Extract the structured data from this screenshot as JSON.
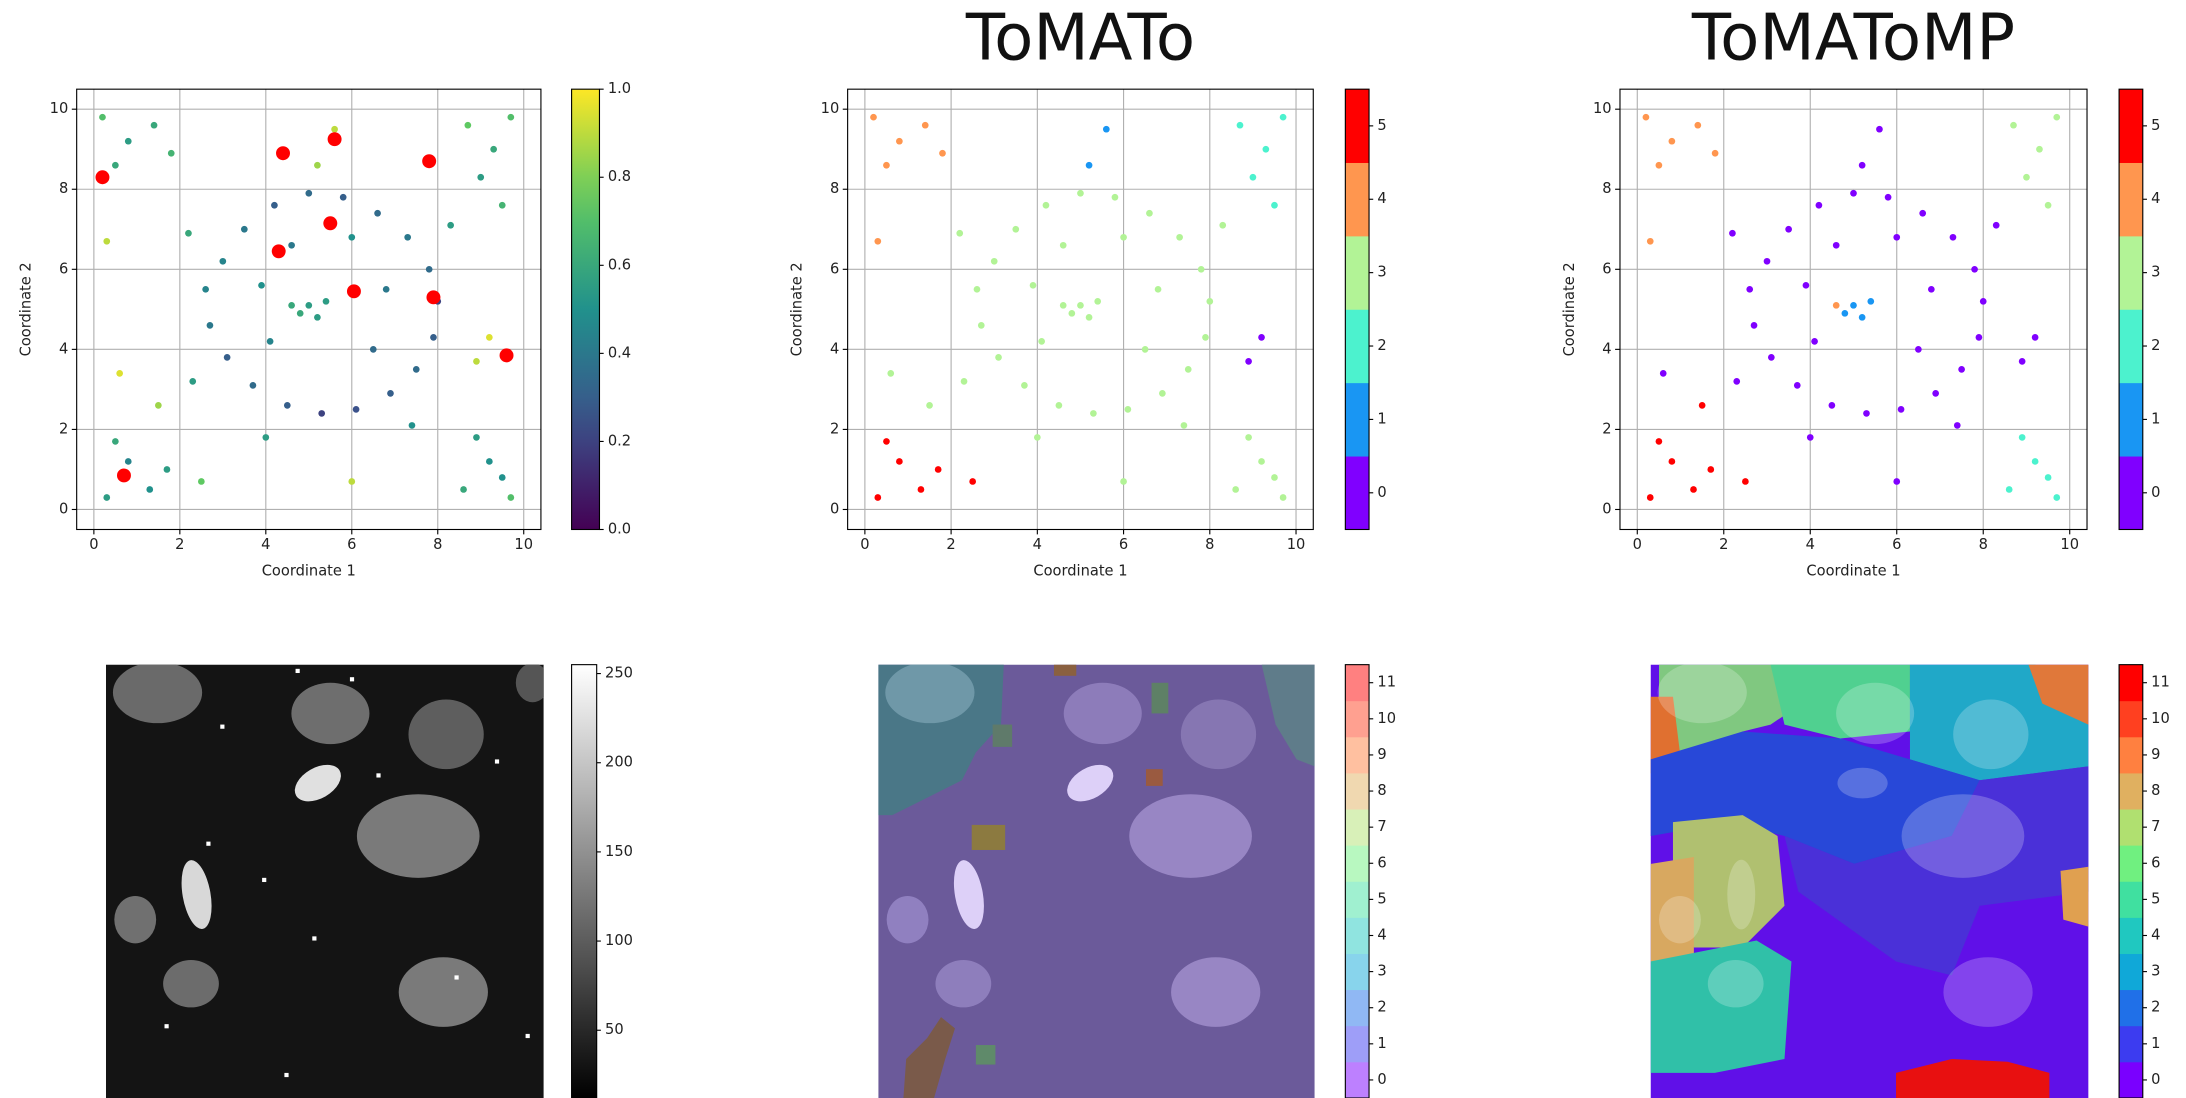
{
  "chart_data": [
    {
      "type": "scatter",
      "xlabel": "Coordinate 1",
      "ylabel": "Coordinate 2",
      "xlim": [
        -0.4,
        10.4
      ],
      "ylim": [
        -0.5,
        10.5
      ],
      "xticks": [
        0,
        2,
        4,
        6,
        8,
        10
      ],
      "yticks": [
        0,
        2,
        4,
        6,
        8,
        10
      ],
      "grid": true,
      "colormap": "viridis",
      "clim": [
        0,
        1
      ],
      "cticks": [
        {
          "value": 0,
          "label": "0.0"
        },
        {
          "value": 0.2,
          "label": "0.2"
        },
        {
          "value": 0.4,
          "label": "0.4"
        },
        {
          "value": 0.6,
          "label": "0.6"
        },
        {
          "value": 0.8,
          "label": "0.8"
        },
        {
          "value": 1,
          "label": "1.0"
        }
      ],
      "series": [
        {
          "x": [
            3.0,
            3.5,
            4.2,
            5.0,
            5.8,
            6.6,
            7.3,
            7.8,
            8.0,
            7.9,
            7.5,
            6.9,
            6.1,
            5.3,
            4.5,
            3.7,
            3.1,
            2.7,
            2.6,
            3.9,
            4.1,
            6.8,
            6.5,
            4.6,
            6.0,
            2.2,
            2.3,
            7.4,
            8.3,
            4.0,
            5.0,
            4.8,
            5.2,
            5.4,
            4.6,
            0.3,
            0.8,
            1.3,
            0.5,
            1.7,
            2.5,
            0.2,
            0.8,
            1.4,
            0.5,
            1.8,
            8.7,
            9.3,
            9.7,
            9.0,
            9.5,
            8.6,
            9.2,
            9.7,
            8.9,
            9.5,
            5.6,
            5.2,
            9.2,
            8.9,
            0.3,
            0.6,
            1.5,
            6.0
          ],
          "y": [
            6.2,
            7.0,
            7.6,
            7.9,
            7.8,
            7.4,
            6.8,
            6.0,
            5.2,
            4.3,
            3.5,
            2.9,
            2.5,
            2.4,
            2.6,
            3.1,
            3.8,
            4.6,
            5.5,
            5.6,
            4.2,
            5.5,
            4.0,
            6.6,
            6.8,
            6.9,
            3.2,
            2.1,
            7.1,
            1.8,
            5.1,
            4.9,
            4.8,
            5.2,
            5.1,
            0.3,
            1.2,
            0.5,
            1.7,
            1.0,
            0.7,
            9.8,
            9.2,
            9.6,
            8.6,
            8.9,
            9.6,
            9.0,
            9.8,
            8.3,
            7.6,
            0.5,
            1.2,
            0.3,
            1.8,
            0.8,
            9.5,
            8.6,
            4.3,
            3.7,
            6.7,
            3.4,
            2.6,
            0.7
          ],
          "values": [
            0.45,
            0.4,
            0.3,
            0.35,
            0.3,
            0.35,
            0.4,
            0.35,
            0.2,
            0.3,
            0.35,
            0.3,
            0.25,
            0.2,
            0.3,
            0.35,
            0.3,
            0.4,
            0.45,
            0.5,
            0.45,
            0.4,
            0.35,
            0.4,
            0.5,
            0.6,
            0.55,
            0.5,
            0.55,
            0.55,
            0.55,
            0.6,
            0.55,
            0.55,
            0.6,
            0.55,
            0.45,
            0.5,
            0.6,
            0.55,
            0.75,
            0.7,
            0.55,
            0.6,
            0.6,
            0.65,
            0.75,
            0.6,
            0.7,
            0.55,
            0.65,
            0.6,
            0.5,
            0.7,
            0.55,
            0.5,
            0.9,
            0.85,
            0.95,
            0.9,
            0.9,
            0.95,
            0.85,
            0.9
          ]
        },
        {
          "x": [
            0.2,
            4.4,
            5.6,
            7.8,
            5.5,
            4.3,
            6.05,
            7.9,
            9.6,
            0.7
          ],
          "y": [
            8.3,
            8.9,
            9.25,
            8.7,
            7.15,
            6.45,
            5.45,
            5.3,
            3.85,
            0.85
          ],
          "color": "#ff0000",
          "size": 5
        }
      ]
    },
    {
      "type": "scatter",
      "title": "ToMATo",
      "xlabel": "Coordinate 1",
      "ylabel": "Coordinate 2",
      "xlim": [
        -0.4,
        10.4
      ],
      "ylim": [
        -0.5,
        10.5
      ],
      "xticks": [
        0,
        2,
        4,
        6,
        8,
        10
      ],
      "yticks": [
        0,
        2,
        4,
        6,
        8,
        10
      ],
      "grid": true,
      "clim": [
        -0.5,
        5.5
      ],
      "cticks": [
        0,
        1,
        2,
        3,
        4,
        5
      ],
      "colors": [
        "#8000ff",
        "#1996f3",
        "#4cf2ce",
        "#b2f396",
        "#ff964f",
        "#ff0000"
      ],
      "series": [
        {
          "x": [
            3.0,
            3.5,
            4.2,
            5.0,
            5.8,
            6.6,
            7.3,
            7.8,
            8.0,
            7.9,
            7.5,
            6.9,
            6.1,
            5.3,
            4.5,
            3.7,
            3.1,
            2.7,
            2.6,
            3.9,
            4.1,
            6.8,
            6.5,
            4.6,
            6.0,
            2.2,
            2.3,
            7.4,
            8.3,
            4.0,
            5.0,
            4.8,
            5.2,
            5.4,
            4.6,
            0.3,
            0.8,
            1.3,
            0.5,
            1.7,
            2.5,
            0.2,
            0.8,
            1.4,
            0.5,
            1.8,
            8.7,
            9.3,
            9.7,
            9.0,
            9.5,
            8.6,
            9.2,
            9.7,
            8.9,
            9.5,
            5.6,
            5.2,
            9.2,
            8.9,
            0.3,
            0.6,
            1.5,
            6.0
          ],
          "y": [
            6.2,
            7.0,
            7.6,
            7.9,
            7.8,
            7.4,
            6.8,
            6.0,
            5.2,
            4.3,
            3.5,
            2.9,
            2.5,
            2.4,
            2.6,
            3.1,
            3.8,
            4.6,
            5.5,
            5.6,
            4.2,
            5.5,
            4.0,
            6.6,
            6.8,
            6.9,
            3.2,
            2.1,
            7.1,
            1.8,
            5.1,
            4.9,
            4.8,
            5.2,
            5.1,
            0.3,
            1.2,
            0.5,
            1.7,
            1.0,
            0.7,
            9.8,
            9.2,
            9.6,
            8.6,
            8.9,
            9.6,
            9.0,
            9.8,
            8.3,
            7.6,
            0.5,
            1.2,
            0.3,
            1.8,
            0.8,
            9.5,
            8.6,
            4.3,
            3.7,
            6.7,
            3.4,
            2.6,
            0.7
          ],
          "values": [
            3,
            3,
            3,
            3,
            3,
            3,
            3,
            3,
            3,
            3,
            3,
            3,
            3,
            3,
            3,
            3,
            3,
            3,
            3,
            3,
            3,
            3,
            3,
            3,
            3,
            3,
            3,
            3,
            3,
            3,
            3,
            3,
            3,
            3,
            3,
            5,
            5,
            5,
            5,
            5,
            5,
            4,
            4,
            4,
            4,
            4,
            2,
            2,
            2,
            2,
            2,
            3,
            3,
            3,
            3,
            3,
            1,
            1,
            0,
            0,
            4,
            3,
            3,
            3
          ]
        }
      ]
    },
    {
      "type": "scatter",
      "title": "ToMAToMP",
      "xlabel": "Coordinate 1",
      "ylabel": "Coordinate 2",
      "xlim": [
        -0.4,
        10.4
      ],
      "ylim": [
        -0.5,
        10.5
      ],
      "xticks": [
        0,
        2,
        4,
        6,
        8,
        10
      ],
      "yticks": [
        0,
        2,
        4,
        6,
        8,
        10
      ],
      "grid": true,
      "clim": [
        -0.5,
        5.5
      ],
      "cticks": [
        0,
        1,
        2,
        3,
        4,
        5
      ],
      "colors": [
        "#8000ff",
        "#1996f3",
        "#4cf2ce",
        "#b2f396",
        "#ff964f",
        "#ff0000"
      ],
      "series": [
        {
          "x": [
            3.0,
            3.5,
            4.2,
            5.0,
            5.8,
            6.6,
            7.3,
            7.8,
            8.0,
            7.9,
            7.5,
            6.9,
            6.1,
            5.3,
            4.5,
            3.7,
            3.1,
            2.7,
            2.6,
            3.9,
            4.1,
            6.8,
            6.5,
            4.6,
            6.0,
            2.2,
            2.3,
            7.4,
            8.3,
            4.0,
            5.0,
            4.8,
            5.2,
            5.4,
            4.6,
            0.3,
            0.8,
            1.3,
            0.5,
            1.7,
            2.5,
            0.2,
            0.8,
            1.4,
            0.5,
            1.8,
            8.7,
            9.3,
            9.7,
            9.0,
            9.5,
            8.6,
            9.2,
            9.7,
            8.9,
            9.5,
            5.6,
            5.2,
            9.2,
            8.9,
            0.3,
            0.6,
            1.5,
            6.0
          ],
          "y": [
            6.2,
            7.0,
            7.6,
            7.9,
            7.8,
            7.4,
            6.8,
            6.0,
            5.2,
            4.3,
            3.5,
            2.9,
            2.5,
            2.4,
            2.6,
            3.1,
            3.8,
            4.6,
            5.5,
            5.6,
            4.2,
            5.5,
            4.0,
            6.6,
            6.8,
            6.9,
            3.2,
            2.1,
            7.1,
            1.8,
            5.1,
            4.9,
            4.8,
            5.2,
            5.1,
            0.3,
            1.2,
            0.5,
            1.7,
            1.0,
            0.7,
            9.8,
            9.2,
            9.6,
            8.6,
            8.9,
            9.6,
            9.0,
            9.8,
            8.3,
            7.6,
            0.5,
            1.2,
            0.3,
            1.8,
            0.8,
            9.5,
            8.6,
            4.3,
            3.7,
            6.7,
            3.4,
            2.6,
            0.7
          ],
          "values": [
            0,
            0,
            0,
            0,
            0,
            0,
            0,
            0,
            0,
            0,
            0,
            0,
            0,
            0,
            0,
            0,
            0,
            0,
            0,
            0,
            0,
            0,
            0,
            0,
            0,
            0,
            0,
            0,
            0,
            0,
            1,
            1,
            1,
            1,
            4,
            5,
            5,
            5,
            5,
            5,
            5,
            4,
            4,
            4,
            4,
            4,
            3,
            3,
            3,
            3,
            3,
            2,
            2,
            2,
            2,
            2,
            0,
            0,
            0,
            0,
            4,
            0,
            5,
            0
          ]
        }
      ]
    },
    {
      "type": "image",
      "colormap": "gray",
      "clim": [
        12,
        255
      ],
      "cticks": [
        50,
        100,
        150,
        200,
        250
      ]
    },
    {
      "type": "image",
      "clim": [
        -0.5,
        11.5
      ],
      "cticks": [
        0,
        1,
        2,
        3,
        4,
        5,
        6,
        7,
        8,
        9,
        10,
        11
      ],
      "alpha": 0.5,
      "colors": [
        "#7a00ff",
        "#3c3cf0",
        "#2070e8",
        "#10a8d8",
        "#20c8c0",
        "#40e0a0",
        "#70f080",
        "#b0e070",
        "#e0b060",
        "#ff8040",
        "#ff4020",
        "#ff0000"
      ]
    },
    {
      "type": "image",
      "clim": [
        -0.5,
        11.5
      ],
      "cticks": [
        0,
        1,
        2,
        3,
        4,
        5,
        6,
        7,
        8,
        9,
        10,
        11
      ],
      "alpha": 1,
      "colors": [
        "#7a00ff",
        "#3c3cf0",
        "#2070e8",
        "#10a8d8",
        "#20c8c0",
        "#40e0a0",
        "#70f080",
        "#b0e070",
        "#e0b060",
        "#ff8040",
        "#ff4020",
        "#ff0000"
      ]
    }
  ]
}
